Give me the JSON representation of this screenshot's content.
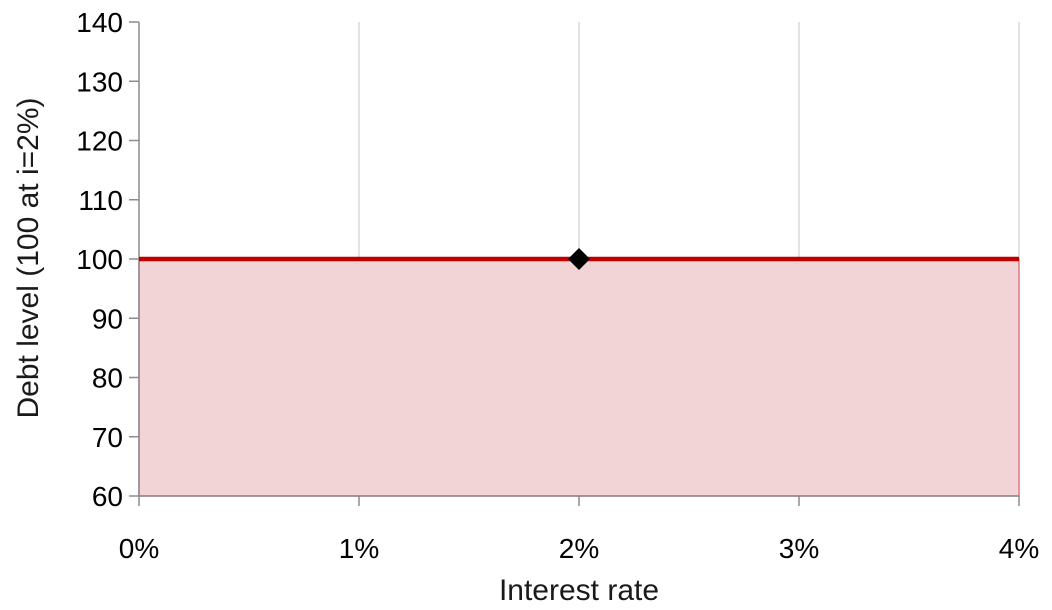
{
  "chart_data": {
    "type": "area",
    "title": "",
    "xlabel": "Interest rate",
    "ylabel": "Debt level (100 at i=2%)",
    "x_ticks": [
      "0%",
      "1%",
      "2%",
      "3%",
      "4%"
    ],
    "y_ticks": [
      "60",
      "70",
      "80",
      "90",
      "100",
      "110",
      "120",
      "130",
      "140"
    ],
    "xlim": [
      0,
      4
    ],
    "ylim": [
      60,
      140
    ],
    "grid": {
      "vertical": true,
      "horizontal": false
    },
    "legend": "none",
    "series": [
      {
        "x": [
          0,
          1,
          2,
          3,
          4
        ],
        "y": [
          100,
          100,
          100,
          100,
          100
        ],
        "fill_to": 60
      }
    ],
    "points": [
      {
        "x": 2,
        "y": 100,
        "marker": "diamond"
      }
    ],
    "colors": {
      "line": "#c00000",
      "fill": "#f2d4d6",
      "fill_edge": "#e07a80",
      "marker": "#000000",
      "grid": "#d0d0d0",
      "axis": "#8c8c8c"
    }
  }
}
